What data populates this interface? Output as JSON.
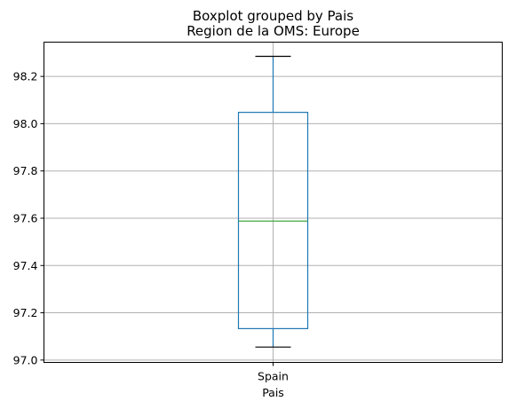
{
  "chart_data": {
    "type": "box",
    "suptitle": "Boxplot grouped by Pais",
    "title": "Region de la OMS: Europe",
    "xlabel": "Pais",
    "ylabel": "",
    "categories": [
      "Spain"
    ],
    "boxes": [
      {
        "category": "Spain",
        "whisker_low": 97.055,
        "q1": 97.133,
        "median": 97.588,
        "q3": 98.048,
        "whisker_high": 98.285
      }
    ],
    "ylim": [
      96.99,
      98.345
    ],
    "yticks": [
      97.0,
      97.2,
      97.4,
      97.6,
      97.8,
      98.0,
      98.2
    ],
    "ytick_labels": [
      "97.0",
      "97.2",
      "97.4",
      "97.6",
      "97.8",
      "98.0",
      "98.2"
    ],
    "grid": true,
    "colors": {
      "box": "#1f77b4",
      "median": "#2ca02c",
      "whisker": "#000000",
      "grid": "#b0b0b0"
    }
  }
}
